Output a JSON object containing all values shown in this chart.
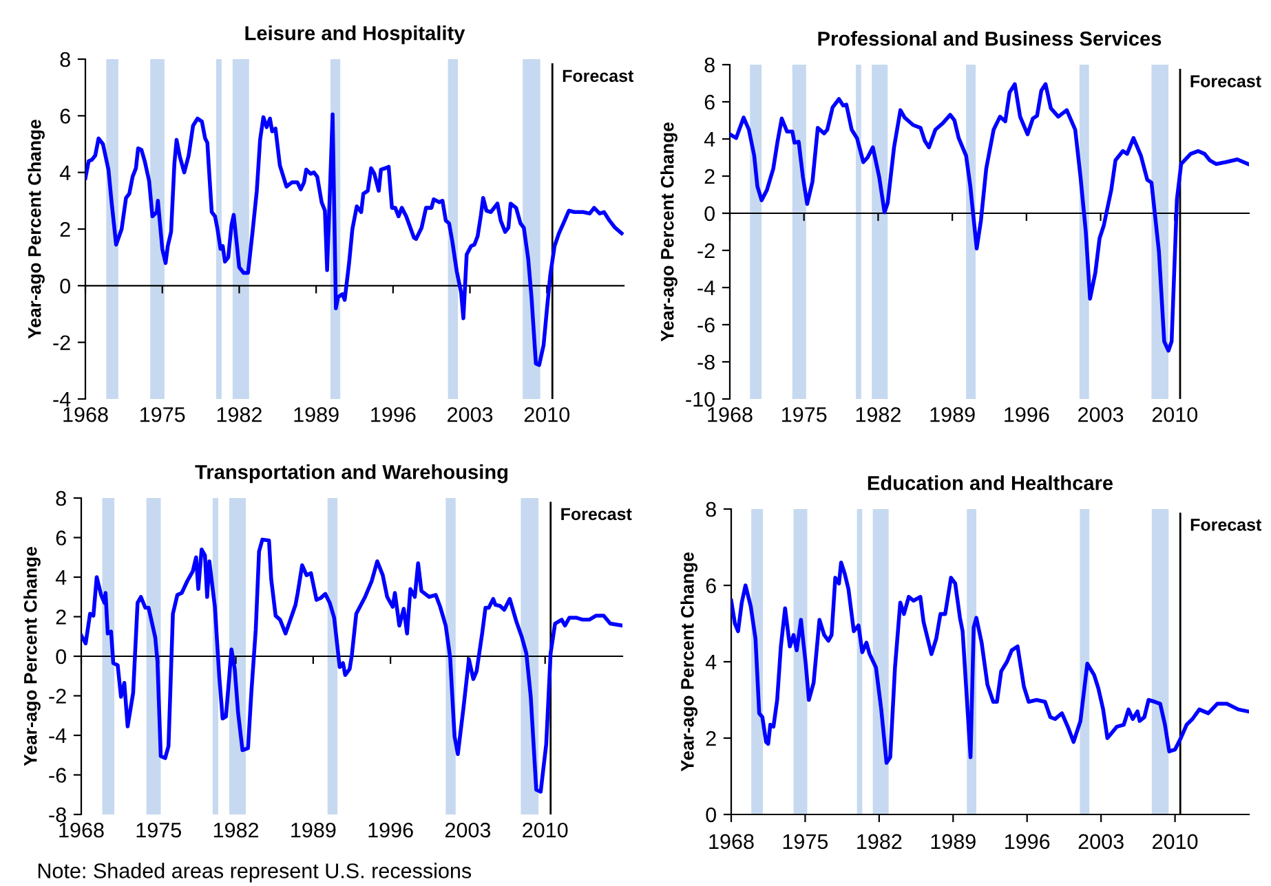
{
  "chart_data": [
    {
      "type": "line",
      "title": "Leisure and Hospitality",
      "ylabel": "Year-ago Percent Change",
      "xlim": [
        1968,
        2017
      ],
      "xticks": [
        1968,
        1975,
        1982,
        1989,
        1996,
        2003,
        2010
      ],
      "ylim": [
        -4,
        8
      ],
      "yticks": [
        -4,
        -2,
        0,
        2,
        4,
        6,
        8
      ],
      "bands": [
        {
          "axis": "x",
          "from": 1969.9,
          "to": 1971.0,
          "color": "#c6d9f0"
        },
        {
          "axis": "x",
          "from": 1973.9,
          "to": 1975.2,
          "color": "#c6d9f0"
        },
        {
          "axis": "x",
          "from": 1979.9,
          "to": 1980.4,
          "color": "#c6d9f0"
        },
        {
          "axis": "x",
          "from": 1981.4,
          "to": 1982.9,
          "color": "#c6d9f0"
        },
        {
          "axis": "x",
          "from": 1990.3,
          "to": 1991.2,
          "color": "#c6d9f0"
        },
        {
          "axis": "x",
          "from": 2001.0,
          "to": 2001.9,
          "color": "#c6d9f0"
        },
        {
          "axis": "x",
          "from": 2007.8,
          "to": 2009.4,
          "color": "#c6d9f0"
        }
      ],
      "ref_lines": [
        {
          "axis": "x",
          "value": 2010.5,
          "label": "Forecast",
          "color": "#000000"
        }
      ],
      "series": [
        {
          "color": "#0000ff",
          "x": [
            1968.0,
            1968.3,
            1968.6,
            1968.9,
            1969.2,
            1969.6,
            1970.1,
            1970.4,
            1970.8,
            1971.3,
            1971.7,
            1972.0,
            1972.3,
            1972.6,
            1972.8,
            1973.1,
            1973.4,
            1973.8,
            1974.1,
            1974.5,
            1974.6,
            1974.8,
            1975.0,
            1975.3,
            1975.5,
            1975.8,
            1976.1,
            1976.3,
            1976.6,
            1977.0,
            1977.4,
            1977.8,
            1978.2,
            1978.6,
            1978.9,
            1979.1,
            1979.3,
            1979.5,
            1979.8,
            1980.0,
            1980.3,
            1980.5,
            1980.7,
            1981.0,
            1981.3,
            1981.5,
            1981.8,
            1982.0,
            1982.4,
            1982.8,
            1983.2,
            1983.6,
            1983.9,
            1984.2,
            1984.5,
            1984.8,
            1985.0,
            1985.3,
            1985.7,
            1986.3,
            1986.8,
            1987.3,
            1987.6,
            1987.9,
            1988.1,
            1988.5,
            1988.8,
            1989.1,
            1989.5,
            1989.8,
            1990.0,
            1990.5,
            1990.8,
            1991.0,
            1991.4,
            1991.6,
            1992.0,
            1992.3,
            1992.7,
            1993.1,
            1993.3,
            1993.7,
            1994.0,
            1994.3,
            1994.7,
            1994.9,
            1995.3,
            1995.6,
            1995.9,
            1996.2,
            1996.5,
            1996.8,
            1997.2,
            1997.9,
            1998.1,
            1998.6,
            1999.0,
            1999.5,
            1999.7,
            2000.2,
            2000.5,
            2000.8,
            2001.1,
            2001.4,
            2001.8,
            2002.2,
            2002.4,
            2002.7,
            2003.1,
            2003.4,
            2003.7,
            2004.0,
            2004.2,
            2004.5,
            2004.9,
            2005.5,
            2005.8,
            2006.2,
            2006.5,
            2006.7,
            2007.2,
            2007.6,
            2007.9,
            2008.3,
            2008.6,
            2009.0,
            2009.3,
            2009.7,
            2010.0,
            2010.3,
            2010.7,
            2011.1,
            2011.5,
            2012.0,
            2012.5,
            2013.3,
            2013.9,
            2014.3,
            2014.8,
            2015.2,
            2015.7,
            2016.2,
            2016.8
          ],
          "values": [
            3.8,
            4.4,
            4.45,
            4.6,
            5.2,
            5.0,
            4.1,
            2.9,
            1.45,
            2.0,
            3.1,
            3.25,
            3.85,
            4.15,
            4.85,
            4.8,
            4.4,
            3.7,
            2.45,
            2.6,
            3.0,
            2.15,
            1.3,
            0.8,
            1.4,
            1.9,
            4.3,
            5.15,
            4.55,
            4.0,
            4.6,
            5.65,
            5.9,
            5.8,
            5.2,
            5.05,
            3.8,
            2.6,
            2.45,
            2.05,
            1.3,
            1.4,
            0.85,
            1.0,
            2.15,
            2.5,
            1.4,
            0.65,
            0.45,
            0.45,
            1.85,
            3.35,
            5.15,
            5.95,
            5.6,
            5.9,
            5.45,
            5.55,
            4.25,
            3.5,
            3.65,
            3.65,
            3.4,
            3.65,
            4.1,
            3.95,
            4.0,
            3.85,
            2.95,
            2.65,
            0.55,
            6.05,
            -0.8,
            -0.4,
            -0.3,
            -0.5,
            0.8,
            2.0,
            2.8,
            2.6,
            3.25,
            3.35,
            4.15,
            3.95,
            3.35,
            4.1,
            4.15,
            4.2,
            2.75,
            2.75,
            2.45,
            2.75,
            2.45,
            1.7,
            1.65,
            2.05,
            2.75,
            2.75,
            3.05,
            2.95,
            3.0,
            2.3,
            2.2,
            1.55,
            0.5,
            -0.25,
            -1.15,
            1.1,
            1.4,
            1.45,
            1.75,
            2.5,
            3.1,
            2.65,
            2.6,
            2.9,
            2.3,
            1.9,
            2.05,
            2.9,
            2.75,
            2.2,
            2.05,
            0.95,
            -0.4,
            -2.75,
            -2.8,
            -2.1,
            -0.85,
            0.35,
            1.4,
            1.85,
            2.2,
            2.65,
            2.6,
            2.6,
            2.55,
            2.75,
            2.55,
            2.6,
            2.3,
            2.05,
            1.85
          ]
        }
      ]
    },
    {
      "type": "line",
      "title": "Professional and Business Services",
      "ylabel": "Year-ago Percent Change",
      "xlim": [
        1968,
        2017
      ],
      "xticks": [
        1968,
        1975,
        1982,
        1989,
        1996,
        2003,
        2010
      ],
      "ylim": [
        -10,
        8
      ],
      "yticks": [
        -10,
        -8,
        -6,
        -4,
        -2,
        0,
        2,
        4,
        6,
        8
      ],
      "bands": [
        {
          "axis": "x",
          "from": 1969.9,
          "to": 1971.0,
          "color": "#c6d9f0"
        },
        {
          "axis": "x",
          "from": 1973.9,
          "to": 1975.2,
          "color": "#c6d9f0"
        },
        {
          "axis": "x",
          "from": 1979.9,
          "to": 1980.4,
          "color": "#c6d9f0"
        },
        {
          "axis": "x",
          "from": 1981.4,
          "to": 1982.9,
          "color": "#c6d9f0"
        },
        {
          "axis": "x",
          "from": 1990.3,
          "to": 1991.2,
          "color": "#c6d9f0"
        },
        {
          "axis": "x",
          "from": 2001.0,
          "to": 2001.9,
          "color": "#c6d9f0"
        },
        {
          "axis": "x",
          "from": 2007.8,
          "to": 2009.4,
          "color": "#c6d9f0"
        }
      ],
      "ref_lines": [
        {
          "axis": "x",
          "value": 2010.5,
          "label": "Forecast",
          "color": "#000000"
        }
      ],
      "series": [
        {
          "color": "#0000ff",
          "x": [
            1968.0,
            1968.6,
            1969.3,
            1969.8,
            1970.3,
            1970.6,
            1971.0,
            1971.5,
            1972.1,
            1972.5,
            1972.9,
            1973.4,
            1973.9,
            1974.1,
            1974.5,
            1974.9,
            1975.3,
            1975.8,
            1976.3,
            1976.9,
            1977.2,
            1977.7,
            1978.3,
            1978.7,
            1979.0,
            1979.5,
            1980.0,
            1980.6,
            1981.0,
            1981.5,
            1982.1,
            1982.6,
            1982.9,
            1983.5,
            1984.1,
            1984.5,
            1985.3,
            1986.0,
            1986.4,
            1986.8,
            1987.4,
            1988.1,
            1988.8,
            1989.2,
            1989.6,
            1990.3,
            1990.7,
            1991.3,
            1991.7,
            1992.2,
            1992.9,
            1993.5,
            1994.0,
            1994.4,
            1994.9,
            1995.4,
            1996.1,
            1996.6,
            1997.0,
            1997.4,
            1997.8,
            1998.3,
            1999.0,
            1999.8,
            2000.6,
            2001.1,
            2001.6,
            2002.0,
            2002.5,
            2002.9,
            2003.3,
            2004.0,
            2004.4,
            2005.1,
            2005.5,
            2006.1,
            2006.8,
            2007.4,
            2007.8,
            2008.5,
            2009.0,
            2009.4,
            2009.7,
            2010.2,
            2010.6,
            2011.5,
            2012.2,
            2012.8,
            2013.3,
            2013.9,
            2014.8,
            2015.9,
            2016.9
          ],
          "values": [
            4.25,
            4.05,
            5.15,
            4.5,
            3.1,
            1.45,
            0.7,
            1.25,
            2.4,
            3.85,
            5.1,
            4.4,
            4.4,
            3.8,
            3.85,
            1.95,
            0.5,
            1.7,
            4.6,
            4.3,
            4.5,
            5.7,
            6.15,
            5.8,
            5.85,
            4.5,
            4.05,
            2.75,
            3.0,
            3.55,
            1.95,
            0.05,
            0.55,
            3.55,
            5.55,
            5.15,
            4.75,
            4.6,
            3.9,
            3.55,
            4.5,
            4.85,
            5.3,
            5.0,
            4.05,
            3.1,
            1.45,
            -1.9,
            -0.4,
            2.4,
            4.5,
            5.2,
            4.95,
            6.5,
            6.95,
            5.2,
            4.25,
            5.1,
            5.25,
            6.6,
            6.95,
            5.65,
            5.2,
            5.55,
            4.5,
            1.95,
            -1.0,
            -4.6,
            -3.2,
            -1.35,
            -0.65,
            1.25,
            2.85,
            3.35,
            3.2,
            4.05,
            3.1,
            1.8,
            1.65,
            -2.05,
            -6.9,
            -7.4,
            -6.9,
            0.75,
            2.65,
            3.2,
            3.35,
            3.2,
            2.85,
            2.65,
            2.75,
            2.9,
            2.65
          ]
        }
      ]
    },
    {
      "type": "line",
      "title": "Transportation and Warehousing",
      "ylabel": "Year-ago Percent Change",
      "xlim": [
        1968,
        2017
      ],
      "xticks": [
        1968,
        1975,
        1982,
        1989,
        1996,
        2003,
        2010
      ],
      "ylim": [
        -8,
        8
      ],
      "yticks": [
        -8,
        -6,
        -4,
        -2,
        0,
        2,
        4,
        6,
        8
      ],
      "annotations": [
        "Note: Shaded areas represent U.S. recessions"
      ],
      "bands": [
        {
          "axis": "x",
          "from": 1969.9,
          "to": 1971.0,
          "color": "#c6d9f0"
        },
        {
          "axis": "x",
          "from": 1973.9,
          "to": 1975.2,
          "color": "#c6d9f0"
        },
        {
          "axis": "x",
          "from": 1979.9,
          "to": 1980.4,
          "color": "#c6d9f0"
        },
        {
          "axis": "x",
          "from": 1981.4,
          "to": 1982.9,
          "color": "#c6d9f0"
        },
        {
          "axis": "x",
          "from": 1990.3,
          "to": 1991.2,
          "color": "#c6d9f0"
        },
        {
          "axis": "x",
          "from": 2001.0,
          "to": 2001.9,
          "color": "#c6d9f0"
        },
        {
          "axis": "x",
          "from": 2007.8,
          "to": 2009.4,
          "color": "#c6d9f0"
        }
      ],
      "ref_lines": [
        {
          "axis": "x",
          "value": 2010.5,
          "label": "Forecast",
          "color": "#000000"
        }
      ],
      "series": [
        {
          "color": "#0000ff",
          "x": [
            1968.0,
            1968.4,
            1968.8,
            1969.1,
            1969.4,
            1969.8,
            1970.1,
            1970.2,
            1970.4,
            1970.7,
            1970.9,
            1971.3,
            1971.6,
            1971.9,
            1972.2,
            1972.7,
            1973.1,
            1973.4,
            1973.8,
            1974.1,
            1974.7,
            1974.9,
            1975.2,
            1975.6,
            1975.9,
            1976.3,
            1976.7,
            1977.1,
            1977.6,
            1978.1,
            1978.4,
            1978.6,
            1978.9,
            1979.2,
            1979.4,
            1979.6,
            1980.1,
            1980.5,
            1980.8,
            1981.1,
            1981.4,
            1981.6,
            1981.9,
            1982.2,
            1982.6,
            1983.1,
            1983.4,
            1983.8,
            1984.1,
            1984.4,
            1985.0,
            1985.2,
            1985.6,
            1986.0,
            1986.5,
            1987.0,
            1987.4,
            1987.6,
            1988.0,
            1988.4,
            1988.8,
            1989.3,
            1989.7,
            1990.1,
            1990.5,
            1990.9,
            1991.4,
            1991.7,
            1991.9,
            1992.3,
            1992.5,
            1992.9,
            1993.7,
            1994.3,
            1994.8,
            1995.3,
            1995.7,
            1996.2,
            1996.4,
            1996.8,
            1997.2,
            1997.5,
            1997.8,
            1998.2,
            1998.5,
            1998.8,
            1999.5,
            2000.1,
            2000.5,
            2001.0,
            2001.4,
            2001.8,
            2002.1,
            2002.6,
            2003.1,
            2003.5,
            2003.8,
            2004.3,
            2004.6,
            2004.9,
            2005.3,
            2005.5,
            2005.9,
            2006.3,
            2006.8,
            2007.4,
            2007.9,
            2008.3,
            2008.7,
            2009.2,
            2009.6,
            2010.1,
            2010.5,
            2010.9,
            2011.5,
            2011.8,
            2012.2,
            2012.8,
            2013.4,
            2014.0,
            2014.6,
            2015.3,
            2015.9,
            2017.0
          ],
          "values": [
            1.05,
            0.65,
            2.15,
            2.05,
            4.0,
            3.1,
            2.7,
            3.2,
            1.15,
            1.25,
            -0.35,
            -0.45,
            -2.05,
            -1.35,
            -3.55,
            -1.85,
            2.7,
            3.0,
            2.45,
            2.45,
            0.95,
            -0.25,
            -5.05,
            -5.15,
            -4.55,
            2.15,
            3.1,
            3.2,
            3.8,
            4.3,
            5.0,
            3.4,
            5.4,
            5.1,
            3.0,
            4.8,
            2.5,
            -1.05,
            -3.15,
            -3.05,
            -1.05,
            0.35,
            -0.65,
            -2.85,
            -4.75,
            -4.65,
            -1.85,
            1.35,
            5.3,
            5.9,
            5.85,
            3.9,
            2.05,
            1.85,
            1.15,
            1.95,
            2.6,
            3.2,
            4.6,
            4.1,
            4.2,
            2.85,
            2.95,
            3.15,
            2.7,
            1.95,
            -0.55,
            -0.35,
            -0.95,
            -0.65,
            0.05,
            2.15,
            3.0,
            3.8,
            4.8,
            4.1,
            3.0,
            2.5,
            3.2,
            1.55,
            2.4,
            1.15,
            3.4,
            3.0,
            4.7,
            3.3,
            3.0,
            3.1,
            2.5,
            1.55,
            -0.05,
            -4.05,
            -4.95,
            -2.65,
            -0.15,
            -1.15,
            -0.75,
            1.15,
            2.45,
            2.45,
            2.9,
            2.6,
            2.55,
            2.35,
            2.9,
            1.75,
            0.95,
            0.15,
            -2.05,
            -6.75,
            -6.85,
            -4.45,
            0.15,
            1.65,
            1.85,
            1.55,
            1.95,
            1.95,
            1.85,
            1.85,
            2.05,
            2.05,
            1.65,
            1.55
          ]
        }
      ]
    },
    {
      "type": "line",
      "title": "Education and Healthcare",
      "ylabel": "Year-ago Percent Change",
      "xlim": [
        1968,
        2017
      ],
      "xticks": [
        1968,
        1975,
        1982,
        1989,
        1996,
        2003,
        2010
      ],
      "ylim": [
        0,
        8
      ],
      "yticks": [
        0,
        2,
        4,
        6,
        8
      ],
      "bands": [
        {
          "axis": "x",
          "from": 1969.9,
          "to": 1971.0,
          "color": "#c6d9f0"
        },
        {
          "axis": "x",
          "from": 1973.9,
          "to": 1975.2,
          "color": "#c6d9f0"
        },
        {
          "axis": "x",
          "from": 1979.9,
          "to": 1980.4,
          "color": "#c6d9f0"
        },
        {
          "axis": "x",
          "from": 1981.4,
          "to": 1982.9,
          "color": "#c6d9f0"
        },
        {
          "axis": "x",
          "from": 1990.3,
          "to": 1991.2,
          "color": "#c6d9f0"
        },
        {
          "axis": "x",
          "from": 2001.0,
          "to": 2001.9,
          "color": "#c6d9f0"
        },
        {
          "axis": "x",
          "from": 2007.8,
          "to": 2009.4,
          "color": "#c6d9f0"
        }
      ],
      "ref_lines": [
        {
          "axis": "x",
          "value": 2010.5,
          "label": "Forecast",
          "color": "#000000"
        }
      ],
      "series": [
        {
          "color": "#0000ff",
          "x": [
            1968.0,
            1968.35,
            1968.65,
            1969.0,
            1969.35,
            1969.85,
            1970.3,
            1970.65,
            1970.95,
            1971.3,
            1971.5,
            1971.7,
            1972.0,
            1972.35,
            1972.7,
            1973.1,
            1973.55,
            1973.9,
            1974.2,
            1974.6,
            1975.05,
            1975.35,
            1975.8,
            1976.35,
            1976.8,
            1977.2,
            1977.5,
            1977.85,
            1978.2,
            1978.4,
            1978.75,
            1979.1,
            1979.6,
            1980.05,
            1980.4,
            1980.8,
            1981.1,
            1981.7,
            1982.2,
            1982.7,
            1983.05,
            1983.5,
            1984.0,
            1984.35,
            1984.8,
            1985.25,
            1985.9,
            1986.2,
            1986.95,
            1987.4,
            1987.8,
            1988.25,
            1988.8,
            1989.2,
            1989.65,
            1989.9,
            1990.65,
            1990.95,
            1991.2,
            1991.7,
            1992.25,
            1992.8,
            1993.15,
            1993.55,
            1994.1,
            1994.55,
            1995.1,
            1995.7,
            1996.15,
            1996.9,
            1997.7,
            1998.2,
            1998.65,
            1999.3,
            1999.85,
            2000.4,
            2001.05,
            2001.7,
            2002.35,
            2002.75,
            2003.2,
            2003.6,
            2004.05,
            2004.5,
            2005.15,
            2005.6,
            2006.0,
            2006.45,
            2006.65,
            2007.1,
            2007.5,
            2008.1,
            2008.6,
            2009.05,
            2009.45,
            2010.0,
            2010.55,
            2011.1,
            2011.65,
            2012.3,
            2013.15,
            2014.0,
            2014.9,
            2016.0,
            2016.9
          ],
          "values": [
            5.6,
            5.0,
            4.8,
            5.55,
            6.0,
            5.45,
            4.6,
            2.65,
            2.55,
            1.9,
            1.85,
            2.35,
            2.3,
            3.0,
            4.4,
            5.4,
            4.4,
            4.7,
            4.3,
            5.1,
            3.95,
            3.0,
            3.45,
            5.1,
            4.7,
            4.55,
            4.7,
            6.2,
            6.05,
            6.6,
            6.3,
            5.9,
            4.8,
            4.95,
            4.25,
            4.5,
            4.2,
            3.85,
            2.75,
            1.35,
            1.5,
            3.85,
            5.55,
            5.25,
            5.7,
            5.6,
            5.7,
            5.05,
            4.2,
            4.6,
            5.25,
            5.25,
            6.2,
            6.05,
            5.15,
            4.8,
            1.5,
            4.9,
            5.15,
            4.5,
            3.4,
            2.95,
            2.95,
            3.75,
            4.0,
            4.3,
            4.4,
            3.35,
            2.95,
            3.0,
            2.95,
            2.55,
            2.5,
            2.65,
            2.3,
            1.9,
            2.45,
            3.95,
            3.65,
            3.3,
            2.75,
            2.0,
            2.15,
            2.3,
            2.35,
            2.75,
            2.5,
            2.7,
            2.45,
            2.55,
            3.0,
            2.95,
            2.9,
            2.35,
            1.65,
            1.7,
            2.0,
            2.35,
            2.5,
            2.75,
            2.65,
            2.9,
            2.9,
            2.75,
            2.7
          ]
        }
      ]
    }
  ]
}
